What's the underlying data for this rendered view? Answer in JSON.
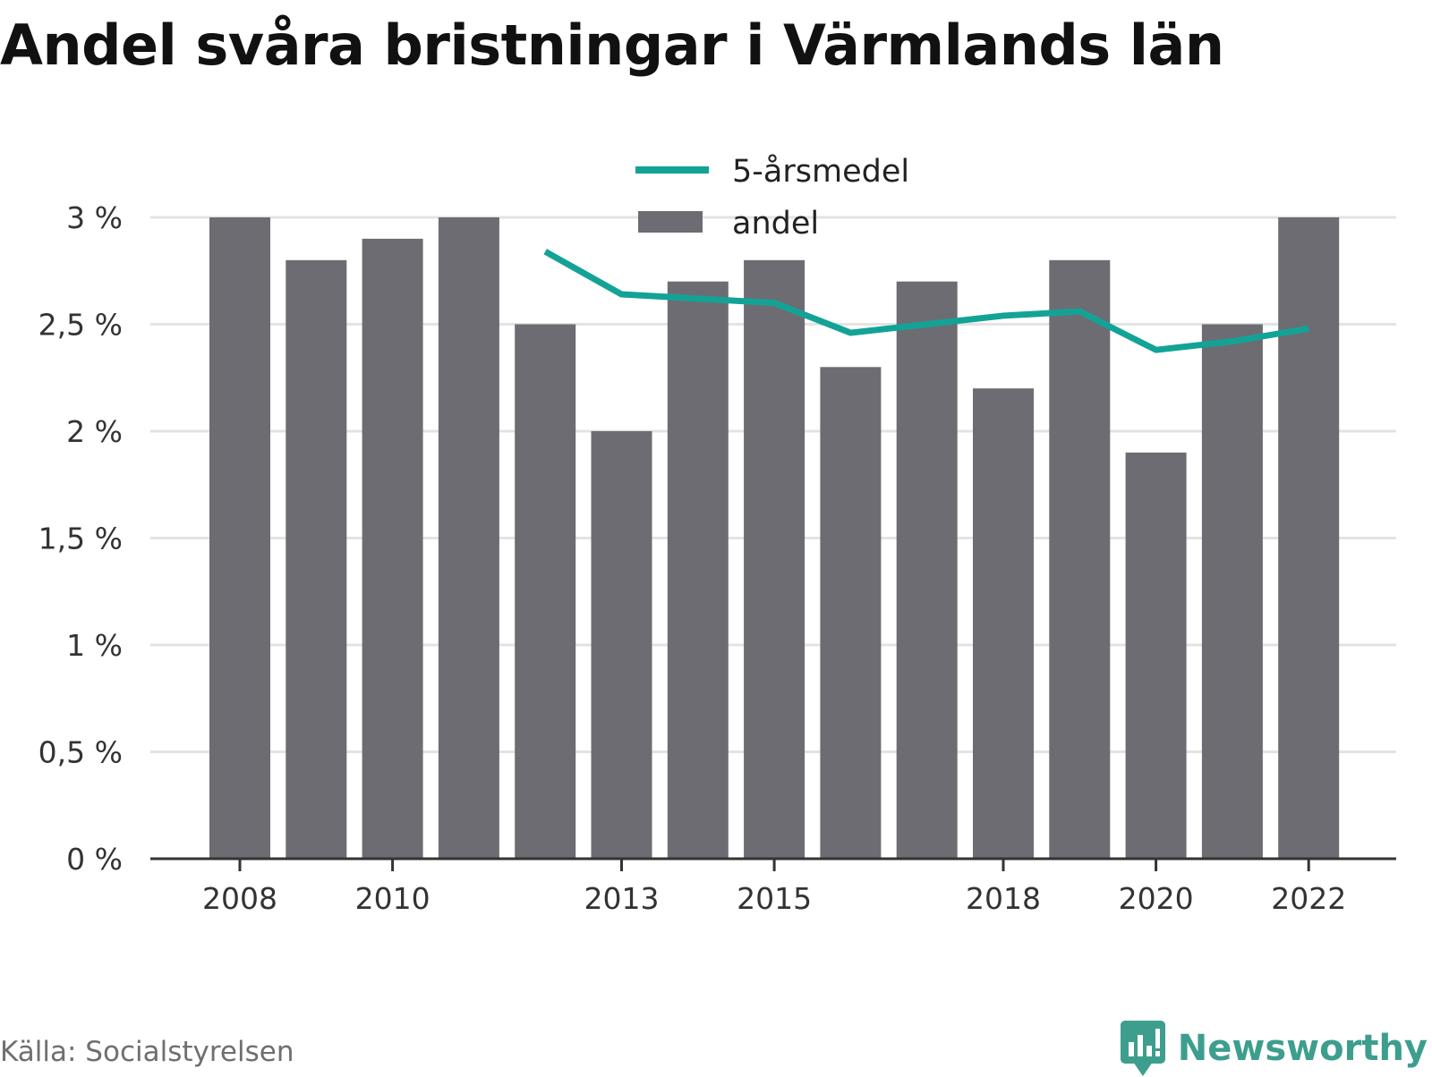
{
  "title": "Andel svåra bristningar i Värmlands län",
  "source": "Källa: Socialstyrelsen",
  "brand": "Newsworthy",
  "colors": {
    "bar": "#6d6c73",
    "line": "#13a396",
    "grid": "#e3e3e3",
    "axis": "#333333",
    "brand": "#3d9e8e"
  },
  "chart_data": {
    "type": "bar",
    "title": "Andel svåra bristningar i Värmlands län",
    "xlabel": "",
    "ylabel": "",
    "ylim": [
      0,
      3
    ],
    "x_ticks": [
      2008,
      2010,
      2013,
      2015,
      2018,
      2020,
      2022
    ],
    "y_ticks": [
      {
        "value": 0,
        "label": "0 %"
      },
      {
        "value": 0.5,
        "label": "0,5 %"
      },
      {
        "value": 1,
        "label": "1 %"
      },
      {
        "value": 1.5,
        "label": "1,5 %"
      },
      {
        "value": 2,
        "label": "2 %"
      },
      {
        "value": 2.5,
        "label": "2,5 %"
      },
      {
        "value": 3,
        "label": "3 %"
      }
    ],
    "grid": true,
    "legend_position": "top-center",
    "categories": [
      2008,
      2009,
      2010,
      2011,
      2012,
      2013,
      2014,
      2015,
      2016,
      2017,
      2018,
      2019,
      2020,
      2021,
      2022
    ],
    "series": [
      {
        "name": "andel",
        "type": "bar",
        "values": [
          3.0,
          2.8,
          2.9,
          3.0,
          2.5,
          2.0,
          2.7,
          2.8,
          2.3,
          2.7,
          2.2,
          2.8,
          1.9,
          2.5,
          3.0
        ]
      },
      {
        "name": "5-årsmedel",
        "type": "line",
        "values": [
          null,
          null,
          null,
          null,
          2.84,
          2.64,
          2.62,
          2.6,
          2.46,
          2.5,
          2.54,
          2.56,
          2.38,
          2.42,
          2.48
        ]
      }
    ]
  }
}
